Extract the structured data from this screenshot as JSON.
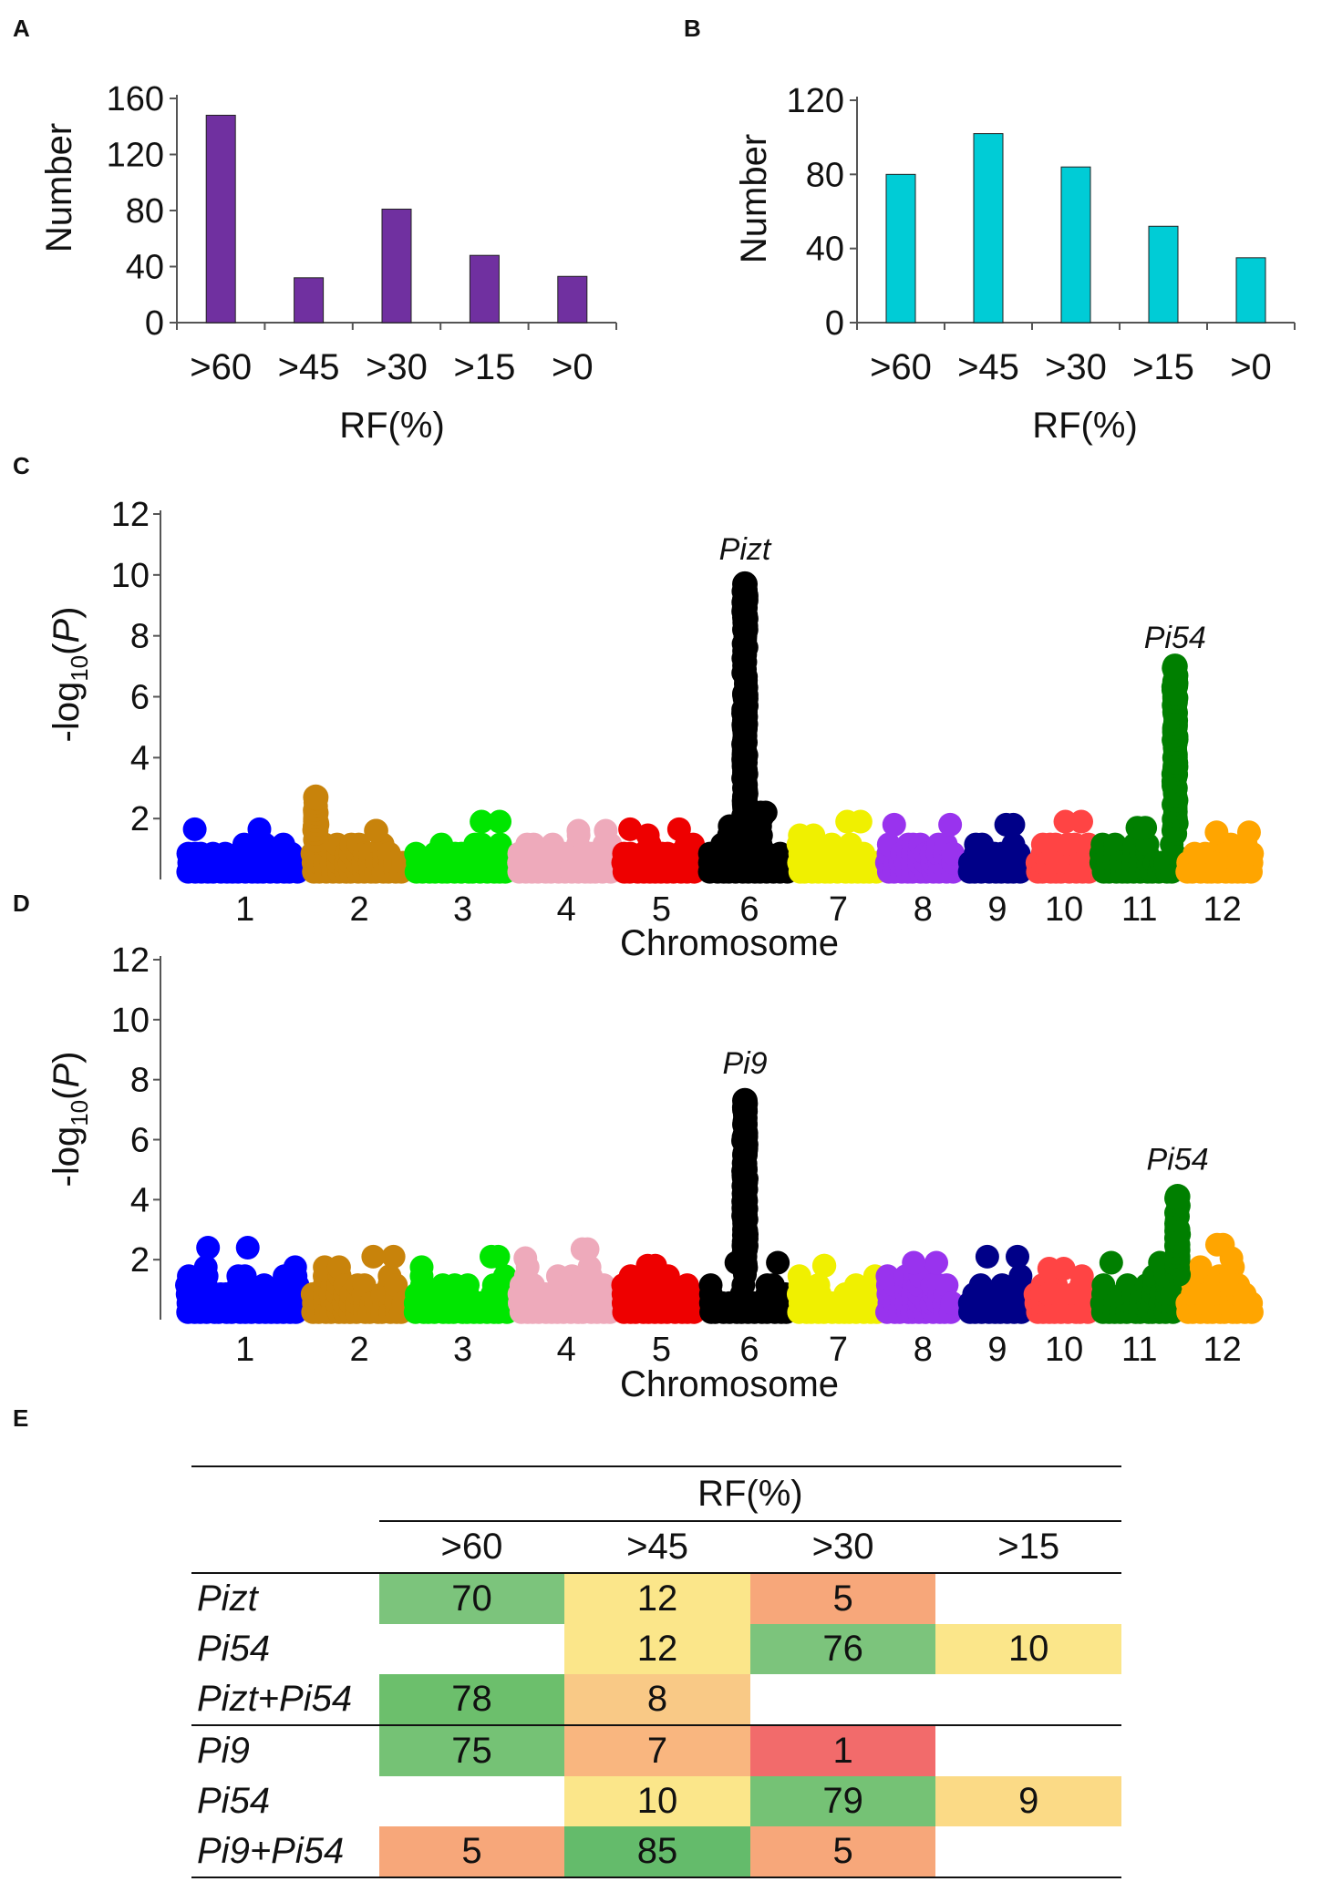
{
  "chart_data": [
    {
      "panel": "A",
      "type": "bar",
      "categories": [
        ">60",
        ">45",
        ">30",
        ">15",
        ">0"
      ],
      "values": [
        148,
        32,
        81,
        48,
        33
      ],
      "xlabel": "RF(%)",
      "ylabel": "Number",
      "ylim": [
        0,
        160
      ],
      "yticks": [
        0,
        40,
        80,
        120,
        160
      ],
      "color": "#7030a0"
    },
    {
      "panel": "B",
      "type": "bar",
      "categories": [
        ">60",
        ">45",
        ">30",
        ">15",
        ">0"
      ],
      "values": [
        80,
        102,
        84,
        52,
        35
      ],
      "xlabel": "RF(%)",
      "ylabel": "Number",
      "ylim": [
        0,
        120
      ],
      "yticks": [
        0,
        40,
        80,
        120
      ],
      "color": "#00ccd6"
    },
    {
      "panel": "C",
      "type": "scatter",
      "xlabel": "Chromosome",
      "ylabel_prefix": "-log",
      "ylabel_sub": "10",
      "ylabel_paren_open": "(",
      "ylabel_var": "P",
      "ylabel_paren_close": ")",
      "ylim": [
        0,
        12
      ],
      "yticks": [
        2,
        4,
        6,
        8,
        10,
        12
      ],
      "chromosomes": [
        "1",
        "2",
        "3",
        "4",
        "5",
        "6",
        "7",
        "8",
        "9",
        "10",
        "11",
        "12"
      ],
      "colors": [
        "#0000ff",
        "#c8830b",
        "#00e600",
        "#eeaabb",
        "#ee0000",
        "#000000",
        "#f0f000",
        "#9933ee",
        "#000088",
        "#ff4444",
        "#007f00",
        "#ffa500"
      ],
      "base_max": [
        1.65,
        1.6,
        1.9,
        1.6,
        1.65,
        2.2,
        1.9,
        1.8,
        1.8,
        1.9,
        1.7,
        1.55
      ],
      "peaks": [
        {
          "chrom": "2",
          "pos": 0.08,
          "values": [
            1.3,
            1.6,
            1.9,
            2.2,
            2.7
          ]
        },
        {
          "chrom": "6",
          "pos": 0.45,
          "values": [
            2.5,
            3.0,
            3.5,
            4.0,
            4.5,
            5.0,
            5.5,
            6.1,
            8.2,
            8.6,
            9.2,
            9.5,
            9.7
          ]
        },
        {
          "chrom": "11",
          "pos": 0.92,
          "values": [
            2.0,
            2.5,
            3.0,
            3.5,
            4.0,
            4.5,
            5.0,
            5.5,
            6.0,
            6.5,
            7.0
          ]
        }
      ],
      "annotations": [
        {
          "text": "Pizt",
          "chrom": "6",
          "pos": 0.45,
          "y": 10.5
        },
        {
          "text": "Pi54",
          "chrom": "11",
          "pos": 0.92,
          "y": 7.6
        }
      ]
    },
    {
      "panel": "D",
      "type": "scatter",
      "xlabel": "Chromosome",
      "ylabel_prefix": "-log",
      "ylabel_sub": "10",
      "ylabel_paren_open": "(",
      "ylabel_var": "P",
      "ylabel_paren_close": ")",
      "ylim": [
        0,
        12
      ],
      "yticks": [
        2,
        4,
        6,
        8,
        10,
        12
      ],
      "chromosomes": [
        "1",
        "2",
        "3",
        "4",
        "5",
        "6",
        "7",
        "8",
        "9",
        "10",
        "11",
        "12"
      ],
      "colors": [
        "#0000ff",
        "#c8830b",
        "#00e600",
        "#eeaabb",
        "#ee0000",
        "#000000",
        "#f0f000",
        "#9933ee",
        "#000088",
        "#ff4444",
        "#007f00",
        "#ffa500"
      ],
      "base_max": [
        2.4,
        2.1,
        2.1,
        2.35,
        1.8,
        1.9,
        1.8,
        1.9,
        2.1,
        1.7,
        1.9,
        2.5
      ],
      "peaks": [
        {
          "chrom": "6",
          "pos": 0.45,
          "values": [
            2.5,
            3.0,
            3.5,
            4.0,
            4.5,
            5.0,
            5.5,
            6.0,
            6.5,
            7.0,
            7.3
          ]
        },
        {
          "chrom": "11",
          "pos": 0.95,
          "values": [
            2.0,
            2.5,
            3.0,
            4.1
          ]
        }
      ],
      "annotations": [
        {
          "text": "Pi9",
          "chrom": "6",
          "pos": 0.45,
          "y": 8.2
        },
        {
          "text": "Pi54",
          "chrom": "11",
          "pos": 0.95,
          "y": 5.0
        }
      ]
    },
    {
      "panel": "E",
      "type": "table",
      "header": "RF(%)",
      "columns": [
        ">60",
        ">45",
        ">30",
        ">15"
      ],
      "rows": [
        {
          "label": "Pizt",
          "cells": [
            "70",
            "12",
            "5",
            ""
          ],
          "colors": [
            "#7cc47c",
            "#fbe68a",
            "#f7a77a",
            ""
          ]
        },
        {
          "label": "Pi54",
          "cells": [
            "",
            "12",
            "76",
            "10"
          ],
          "colors": [
            "",
            "#fbe68a",
            "#7cc47c",
            "#fbe68a"
          ]
        },
        {
          "label": "Pizt+Pi54",
          "cells": [
            "78",
            "8",
            "",
            ""
          ],
          "colors": [
            "#6cbf6c",
            "#f9c986",
            "",
            ""
          ]
        },
        {
          "label": "Pi9",
          "cells": [
            "75",
            "7",
            "1",
            ""
          ],
          "colors": [
            "#75c275",
            "#f9b67f",
            "#f26b6b",
            ""
          ]
        },
        {
          "label": "Pi54",
          "cells": [
            "",
            "10",
            "79",
            "9"
          ],
          "colors": [
            "",
            "#fbe68a",
            "#75c275",
            "#fbda86"
          ]
        },
        {
          "label": "Pi9+Pi54",
          "cells": [
            "5",
            "85",
            "5",
            ""
          ],
          "colors": [
            "#f7a77a",
            "#64bb6b",
            "#f7a77a",
            ""
          ]
        }
      ]
    }
  ],
  "panel_labels": [
    "A",
    "B",
    "C",
    "D",
    "E"
  ]
}
